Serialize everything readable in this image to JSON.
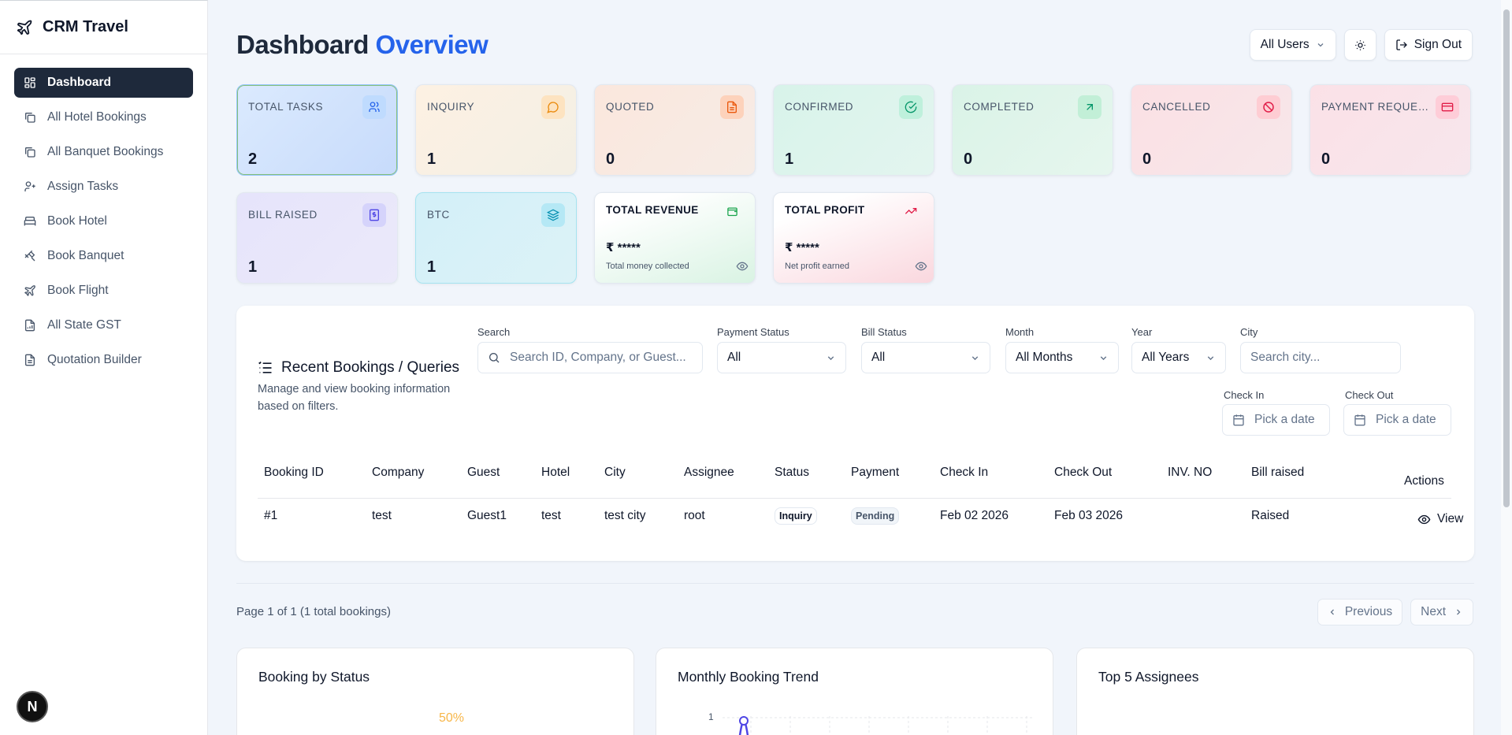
{
  "app": {
    "name": "CRM Travel",
    "badge": "N"
  },
  "sidebar": {
    "items": [
      {
        "label": "Dashboard",
        "icon": "dashboard-icon",
        "active": true
      },
      {
        "label": "All Hotel Bookings",
        "icon": "copy-icon"
      },
      {
        "label": "All Banquet Bookings",
        "icon": "copy-icon"
      },
      {
        "label": "Assign Tasks",
        "icon": "user-plus-icon"
      },
      {
        "label": "Book Hotel",
        "icon": "bed-icon"
      },
      {
        "label": "Book Banquet",
        "icon": "utensils-icon"
      },
      {
        "label": "Book Flight",
        "icon": "plane-icon"
      },
      {
        "label": "All State GST",
        "icon": "file-chart-icon"
      },
      {
        "label": "Quotation Builder",
        "icon": "document-icon"
      }
    ]
  },
  "header": {
    "title_main": "Dashboard",
    "title_accent": "Overview",
    "user_filter": "All Users",
    "sign_out": "Sign Out"
  },
  "stats": [
    {
      "label": "TOTAL TASKS",
      "value": "2",
      "icon": "users-icon",
      "accent": "#3b82f6"
    },
    {
      "label": "INQUIRY",
      "value": "1",
      "icon": "message-icon",
      "accent": "#f59e0b"
    },
    {
      "label": "QUOTED",
      "value": "0",
      "icon": "file-text-icon",
      "accent": "#f97316"
    },
    {
      "label": "CONFIRMED",
      "value": "1",
      "icon": "check-circle-icon",
      "accent": "#10b981"
    },
    {
      "label": "COMPLETED",
      "value": "0",
      "icon": "trend-arrow-icon",
      "accent": "#10b981"
    },
    {
      "label": "CANCELLED",
      "value": "0",
      "icon": "ban-icon",
      "accent": "#e11d48"
    },
    {
      "label": "PAYMENT REQUESTED",
      "value": "0",
      "icon": "credit-card-icon",
      "accent": "#e11d48"
    },
    {
      "label": "BILL RAISED",
      "value": "1",
      "icon": "receipt-icon",
      "accent": "#6366f1"
    },
    {
      "label": "BTC",
      "value": "1",
      "icon": "layers-icon",
      "accent": "#0891b2"
    }
  ],
  "money": {
    "revenue": {
      "label": "TOTAL REVENUE",
      "amount": "₹ *****",
      "sub": "Total money collected"
    },
    "profit": {
      "label": "TOTAL PROFIT",
      "amount": "₹ *****",
      "sub": "Net profit earned"
    }
  },
  "bookings": {
    "title": "Recent Bookings / Queries",
    "description": "Manage and view booking information based on filters.",
    "filters": {
      "search_label": "Search",
      "search_placeholder": "Search ID, Company, or Guest...",
      "payment_label": "Payment Status",
      "payment_value": "All",
      "bill_label": "Bill Status",
      "bill_value": "All",
      "month_label": "Month",
      "month_value": "All Months",
      "year_label": "Year",
      "year_value": "All Years",
      "city_label": "City",
      "city_placeholder": "Search city...",
      "checkin_label": "Check In",
      "checkin_placeholder": "Pick a date",
      "checkout_label": "Check Out",
      "checkout_placeholder": "Pick a date"
    },
    "columns": [
      "Booking ID",
      "Company",
      "Guest",
      "Hotel",
      "City",
      "Assignee",
      "Status",
      "Payment",
      "Check In",
      "Check Out",
      "INV. NO",
      "Bill raised",
      "Actions"
    ],
    "rows": [
      {
        "id": "#1",
        "company": "test",
        "guest": "Guest1",
        "hotel": "test",
        "city": "test city",
        "assignee": "root",
        "status": "Inquiry",
        "payment": "Pending",
        "check_in": "Feb 02 2026",
        "check_out": "Feb 03 2026",
        "inv_no": "",
        "bill_raised": "Raised",
        "action": "View"
      }
    ]
  },
  "pagination": {
    "info": "Page 1 of 1 (1 total bookings)",
    "previous": "Previous",
    "next": "Next"
  },
  "charts": {
    "status_title": "Booking by Status",
    "status_pct": "50%",
    "trend_title": "Monthly Booking Trend",
    "trend_ytick": "1",
    "assignees_title": "Top 5 Assignees"
  }
}
